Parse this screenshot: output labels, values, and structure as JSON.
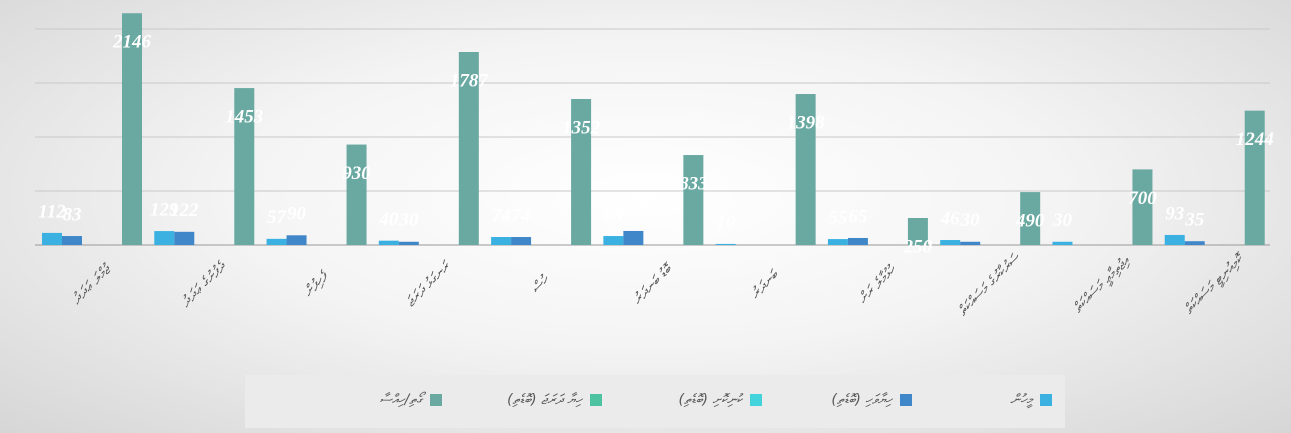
{
  "chart_data": {
    "type": "bar",
    "categories": [
      "ޖުމްލަ ޢަދަދު",
      "ދެފުށުގެ ޢަދަދު",
      "ފެހިފުށް",
      "ރަނގަޅު ދަރަޖަ",
      "ހުސް",
      "ބޮޑު ބަނދަރު",
      "ބަނދަރު",
      "ހުޅުމާލެ ރަށް",
      "ސަރުކާރުގެ މަސައްކަތް",
      "އިޖުތިމާޢީ މަސައްކަތް",
      "ކޮމިއުނިޓީ މަސައްކަތް"
    ],
    "series": [
      {
        "name": "މީހުން",
        "color": "#3bb1e2",
        "values": [
          112,
          129,
          57,
          40,
          74,
          83,
          10,
          55,
          46,
          30,
          93
        ]
      },
      {
        "name": "ހިޔާވަހި (ބޮޑެތި)",
        "color": "#3f87c9",
        "values": [
          83,
          122,
          90,
          30,
          74,
          130,
          0,
          65,
          30,
          0,
          35
        ]
      },
      {
        "name": "ކުނިކޮށި (ބޮޑެތި)",
        "color": "#43d3dc",
        "values": [
          0,
          0,
          0,
          0,
          0,
          0,
          0,
          0,
          0,
          0,
          0
        ]
      },
      {
        "name": "ހިޔާ ދަރަޖަ (ބޮޑެތި)",
        "color": "#4cc2a0",
        "values": [
          0,
          0,
          0,
          0,
          0,
          0,
          0,
          0,
          0,
          0,
          0
        ]
      },
      {
        "name": "ގޯތި/ހިއްސާ",
        "color": "#6aa9a2",
        "values": [
          2146,
          1453,
          930,
          1787,
          1352,
          833,
          1398,
          250,
          490,
          700,
          1244
        ]
      }
    ],
    "ylim": [
      0,
      2250
    ],
    "yticks": [
      0,
      500,
      1000,
      1500,
      2000
    ],
    "grid": true
  }
}
